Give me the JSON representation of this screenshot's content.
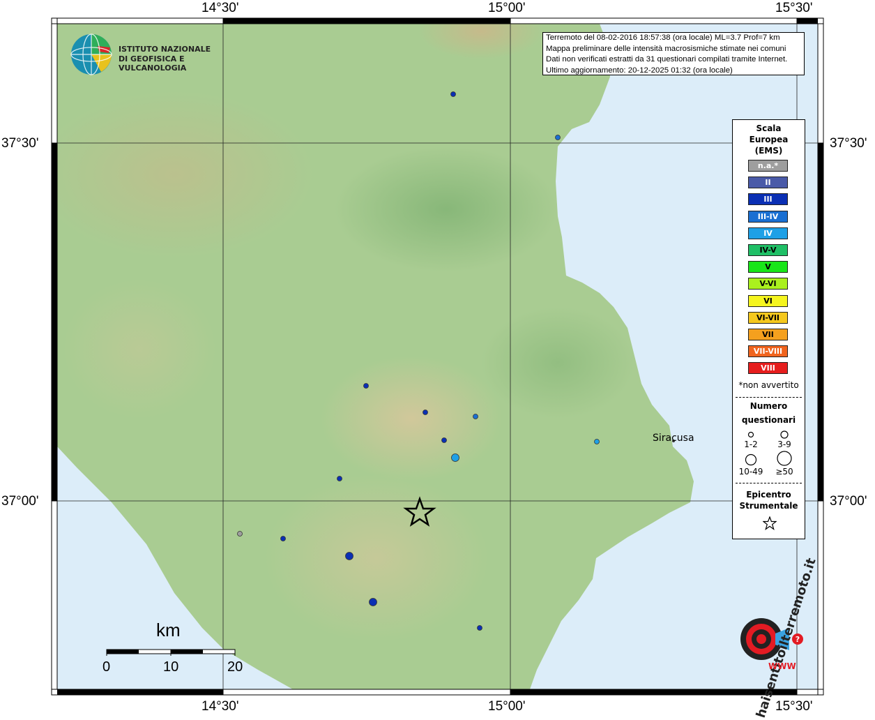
{
  "map": {
    "x_labels": [
      "14°30'",
      "15°00'",
      "15°30'"
    ],
    "y_labels": [
      "37°30'",
      "37°00'"
    ],
    "city_label": "Siracusa"
  },
  "logo": {
    "line1": "ISTITUTO NAZIONALE",
    "line2": "DI GEOFISICA E VULCANOLOGIA"
  },
  "info": {
    "line1": "Terremoto del 08-02-2016 18:57:38 (ora locale) ML=3.7 Prof=7 km",
    "line2": "Mappa preliminare delle intensità macrosismiche stimate nei comuni",
    "line3": "Dati non verificati estratti da 31 questionari compilati tramite Internet.",
    "line4": "Ultimo aggiornamento: 20-12-2025 01:32 (ora locale)"
  },
  "legend": {
    "title_line1": "Scala",
    "title_line2": "Europea",
    "title_line3": "(EMS)",
    "classes": [
      {
        "label": "n.a.*",
        "color": "#9e9e9e",
        "text_color": "#ffffff"
      },
      {
        "label": "II",
        "color": "#4a5aa8",
        "text_color": "#ffffff"
      },
      {
        "label": "III",
        "color": "#0a2fb4",
        "text_color": "#ffffff"
      },
      {
        "label": "III-IV",
        "color": "#1a6fd2",
        "text_color": "#ffffff"
      },
      {
        "label": "IV",
        "color": "#1ea0e6",
        "text_color": "#ffffff"
      },
      {
        "label": "IV-V",
        "color": "#1fbf66",
        "text_color": "#000000"
      },
      {
        "label": "V",
        "color": "#19e619",
        "text_color": "#000000"
      },
      {
        "label": "V-VI",
        "color": "#aaf01e",
        "text_color": "#000000"
      },
      {
        "label": "VI",
        "color": "#f5f51e",
        "text_color": "#000000"
      },
      {
        "label": "VI-VII",
        "color": "#f5c81e",
        "text_color": "#000000"
      },
      {
        "label": "VII",
        "color": "#f5a01e",
        "text_color": "#000000"
      },
      {
        "label": "VII-VIII",
        "color": "#f0641e",
        "text_color": "#ffffff"
      },
      {
        "label": "VIII",
        "color": "#e61e1e",
        "text_color": "#ffffff"
      }
    ],
    "not_felt_note": "*non avvertito",
    "count_title_line1": "Numero",
    "count_title_line2": "questionari",
    "count_labels": [
      "1-2",
      "3-9",
      "10-49",
      "≥50"
    ],
    "epicenter_title_line1": "Epicentro",
    "epicenter_title_line2": "Strumentale"
  },
  "scale": {
    "unit": "km",
    "ticks": [
      "0",
      "10",
      "20"
    ]
  },
  "observations": [
    {
      "intensity": "III",
      "size": "1-2"
    },
    {
      "intensity": "III-IV",
      "size": "1-2"
    },
    {
      "intensity": "III",
      "size": "1-2"
    },
    {
      "intensity": "III",
      "size": "1-2"
    },
    {
      "intensity": "III-IV",
      "size": "1-2"
    },
    {
      "intensity": "III",
      "size": "1-2"
    },
    {
      "intensity": "IV",
      "size": "3-9"
    },
    {
      "intensity": "IV",
      "size": "1-2"
    },
    {
      "intensity": "III",
      "size": "1-2"
    },
    {
      "intensity": "n.a.*",
      "size": "1-2"
    },
    {
      "intensity": "III",
      "size": "1-2"
    },
    {
      "intensity": "III",
      "size": "3-9"
    },
    {
      "intensity": "III",
      "size": "3-9"
    },
    {
      "intensity": "III",
      "size": "1-2"
    }
  ],
  "brand": {
    "text": "haisentitoilterremoto.it",
    "www": "WWW"
  }
}
